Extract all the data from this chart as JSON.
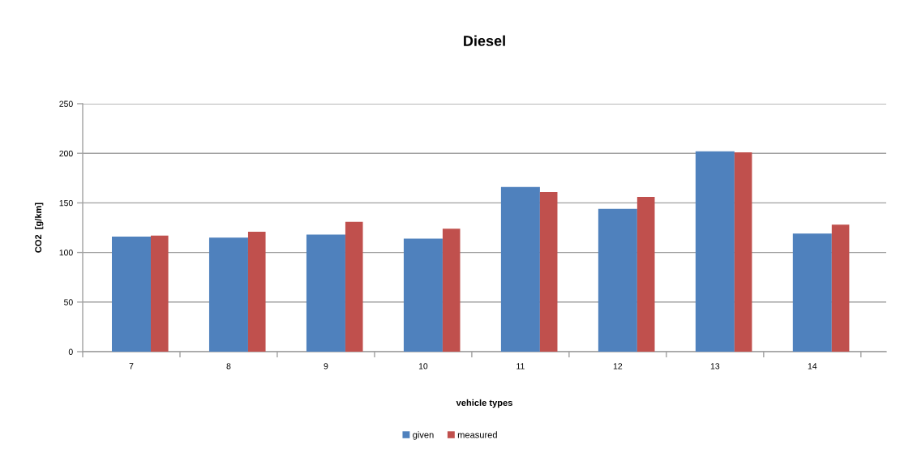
{
  "chart_data": {
    "type": "bar",
    "title": "Diesel",
    "xlabel": "vehicle types",
    "ylabel": "CO2  [g/km]",
    "categories": [
      "7",
      "8",
      "9",
      "10",
      "11",
      "12",
      "13",
      "14"
    ],
    "series": [
      {
        "name": "given",
        "color": "#4f81bd",
        "values": [
          116,
          115,
          118,
          114,
          166,
          144,
          202,
          119
        ]
      },
      {
        "name": "measured",
        "color": "#c0504d",
        "values": [
          117,
          121,
          131,
          124,
          161,
          156,
          201,
          128
        ]
      }
    ],
    "ylim": [
      0,
      250
    ],
    "yticks": [
      0,
      50,
      100,
      150,
      200,
      250
    ],
    "grid": "y",
    "legend": "bottom"
  }
}
